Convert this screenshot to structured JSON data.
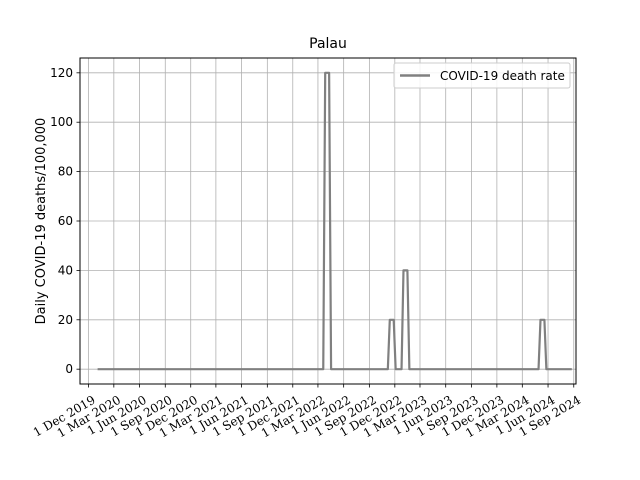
{
  "chart_data": {
    "type": "line",
    "title": "Palau",
    "xlabel": "",
    "ylabel": "Daily COVID-19 deaths/100,000",
    "x_ticks": [
      "2019-12-01",
      "2020-03-01",
      "2020-06-01",
      "2020-09-01",
      "2020-12-01",
      "2021-03-01",
      "2021-06-01",
      "2021-09-01",
      "2021-12-01",
      "2022-03-01",
      "2022-06-01",
      "2022-09-01",
      "2022-12-01",
      "2023-03-01",
      "2023-06-01",
      "2023-09-01",
      "2023-12-01",
      "2024-03-01",
      "2024-06-01",
      "2024-09-01"
    ],
    "x_tick_labels": [
      "1 Dec 2019",
      "1 Mar 2020",
      "1 Jun 2020",
      "1 Sep 2020",
      "1 Dec 2020",
      "1 Mar 2021",
      "1 Jun 2021",
      "1 Sep 2021",
      "1 Dec 2021",
      "1 Mar 2022",
      "1 Jun 2022",
      "1 Sep 2022",
      "1 Dec 2022",
      "1 Mar 2023",
      "1 Jun 2023",
      "1 Sep 2023",
      "1 Dec 2023",
      "1 Mar 2024",
      "1 Jun 2024",
      "1 Sep 2024"
    ],
    "y_ticks": [
      0,
      20,
      40,
      60,
      80,
      100,
      120
    ],
    "xlim": [
      "2019-11-01",
      "2024-09-09"
    ],
    "ylim": [
      -6,
      126
    ],
    "grid": true,
    "legend_position": "upper right",
    "series": [
      {
        "name": "COVID-19 death rate",
        "color": "#808080",
        "x": [
          "2020-01-03",
          "2022-03-20",
          "2022-03-27",
          "2022-04-10",
          "2022-04-17",
          "2022-11-06",
          "2022-11-13",
          "2022-11-27",
          "2022-12-04",
          "2022-12-25",
          "2023-01-01",
          "2023-01-15",
          "2023-01-22",
          "2024-04-28",
          "2024-05-05",
          "2024-05-19",
          "2024-05-26",
          "2024-08-25"
        ],
        "y": [
          0,
          0,
          120,
          120,
          0,
          0,
          20,
          20,
          0,
          0,
          40,
          40,
          0,
          0,
          20,
          20,
          0,
          0
        ]
      }
    ]
  }
}
